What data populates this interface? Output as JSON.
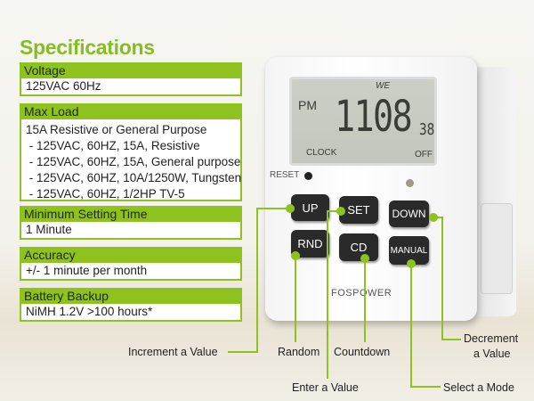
{
  "title": "Specifications",
  "specs": [
    {
      "label": "Voltage",
      "lines": [
        "125VAC 60Hz"
      ]
    },
    {
      "label": "Max Load",
      "lines": [
        "15A Resistive or General Purpose",
        " - 125VAC, 60HZ, 15A, Resistive",
        " - 125VAC, 60HZ, 15A, General purpose",
        " - 125VAC, 60HZ, 10A/1250W, Tungsten",
        " - 125VAC, 60HZ, 1/2HP TV-5"
      ]
    },
    {
      "label": "Minimum Setting Time",
      "lines": [
        "1 Minute"
      ]
    },
    {
      "label": "Accuracy",
      "lines": [
        "+/- 1 minute per month"
      ]
    },
    {
      "label": "Battery Backup",
      "lines": [
        "NiMH 1.2V >100 hours*"
      ]
    }
  ],
  "device": {
    "lcd": {
      "day": "WE",
      "ampm": "PM",
      "time": "1108",
      "seconds": "38",
      "mode": "CLOCK",
      "state": "OFF"
    },
    "reset_label": "RESET",
    "buttons": {
      "up": "UP",
      "set": "SET",
      "down": "DOWN",
      "rnd": "RND",
      "cd": "CD",
      "manual": "MANUAL"
    },
    "brand": "FOSPOWER"
  },
  "callouts": {
    "up": "Increment a Value",
    "rnd": "Random",
    "set": "Enter a Value",
    "cd": "Countdown",
    "manual": "Select a Mode",
    "down_1": "Decrement",
    "down_2": "a Value"
  },
  "colors": {
    "accent": "#8dc21f",
    "button": "#2a2a2a"
  }
}
